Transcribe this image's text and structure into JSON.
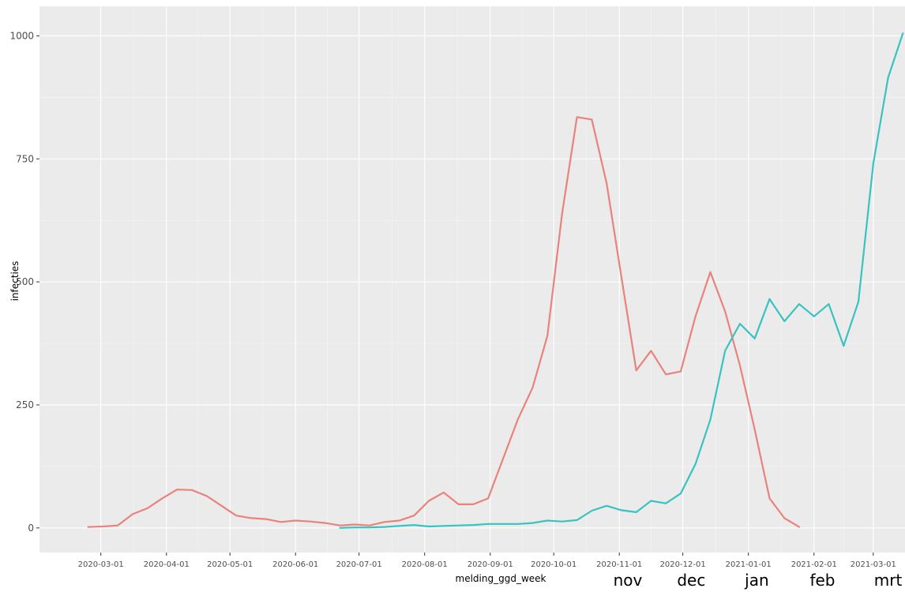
{
  "chart_data": {
    "type": "line",
    "xlabel": "melding_ggd_week",
    "ylabel": "infecties",
    "x_date_range": [
      "2020-02-01",
      "2021-03-16"
    ],
    "ylim": [
      -50,
      1060
    ],
    "grid": true,
    "x_ticks": [
      "2020-03-01",
      "2020-04-01",
      "2020-05-01",
      "2020-06-01",
      "2020-07-01",
      "2020-08-01",
      "2020-09-01",
      "2020-10-01",
      "2020-11-01",
      "2020-12-01",
      "2021-01-01",
      "2021-02-01",
      "2021-03-01"
    ],
    "y_ticks": [
      0,
      250,
      500,
      750,
      1000
    ],
    "month_annotations": [
      {
        "label": "nov",
        "date": "2020-11-05"
      },
      {
        "label": "dec",
        "date": "2020-12-05"
      },
      {
        "label": "jan",
        "date": "2021-01-05"
      },
      {
        "label": "feb",
        "date": "2021-02-05"
      },
      {
        "label": "mrt",
        "date": "2021-03-08"
      }
    ],
    "series": [
      {
        "color": "#E8837C",
        "x": [
          "2020-02-24",
          "2020-03-02",
          "2020-03-09",
          "2020-03-16",
          "2020-03-23",
          "2020-03-30",
          "2020-04-06",
          "2020-04-13",
          "2020-04-20",
          "2020-04-27",
          "2020-05-04",
          "2020-05-11",
          "2020-05-18",
          "2020-05-25",
          "2020-06-01",
          "2020-06-08",
          "2020-06-15",
          "2020-06-22",
          "2020-06-29",
          "2020-07-06",
          "2020-07-13",
          "2020-07-20",
          "2020-07-27",
          "2020-08-03",
          "2020-08-10",
          "2020-08-17",
          "2020-08-24",
          "2020-08-31",
          "2020-09-07",
          "2020-09-14",
          "2020-09-21",
          "2020-09-28",
          "2020-10-05",
          "2020-10-12",
          "2020-10-19",
          "2020-10-26",
          "2020-11-02",
          "2020-11-09",
          "2020-11-16",
          "2020-11-23",
          "2020-11-30",
          "2020-12-07",
          "2020-12-14",
          "2020-12-21",
          "2020-12-28",
          "2021-01-04",
          "2021-01-11",
          "2021-01-18",
          "2021-01-25"
        ],
        "values": [
          2,
          3,
          5,
          28,
          40,
          60,
          78,
          77,
          65,
          45,
          25,
          20,
          18,
          12,
          15,
          13,
          10,
          5,
          7,
          5,
          12,
          15,
          25,
          55,
          72,
          48,
          48,
          60,
          140,
          220,
          285,
          390,
          640,
          835,
          830,
          700,
          510,
          320,
          360,
          312,
          318,
          430,
          520,
          440,
          330,
          200,
          60,
          20,
          2
        ]
      },
      {
        "color": "#38C3C0",
        "x": [
          "2020-06-22",
          "2020-06-29",
          "2020-07-06",
          "2020-07-13",
          "2020-07-20",
          "2020-07-27",
          "2020-08-03",
          "2020-08-10",
          "2020-08-17",
          "2020-08-24",
          "2020-08-31",
          "2020-09-07",
          "2020-09-14",
          "2020-09-21",
          "2020-09-28",
          "2020-10-05",
          "2020-10-12",
          "2020-10-19",
          "2020-10-26",
          "2020-11-02",
          "2020-11-09",
          "2020-11-16",
          "2020-11-23",
          "2020-11-30",
          "2020-12-07",
          "2020-12-14",
          "2020-12-21",
          "2020-12-28",
          "2021-01-04",
          "2021-01-11",
          "2021-01-18",
          "2021-01-25",
          "2021-02-01",
          "2021-02-08",
          "2021-02-15",
          "2021-02-22",
          "2021-03-01",
          "2021-03-08",
          "2021-03-15"
        ],
        "values": [
          0,
          1,
          1,
          2,
          4,
          6,
          3,
          4,
          5,
          6,
          8,
          8,
          8,
          10,
          15,
          13,
          16,
          35,
          45,
          36,
          32,
          55,
          50,
          70,
          130,
          220,
          360,
          415,
          385,
          465,
          420,
          455,
          430,
          455,
          370,
          460,
          740,
          915,
          1005
        ]
      }
    ]
  }
}
